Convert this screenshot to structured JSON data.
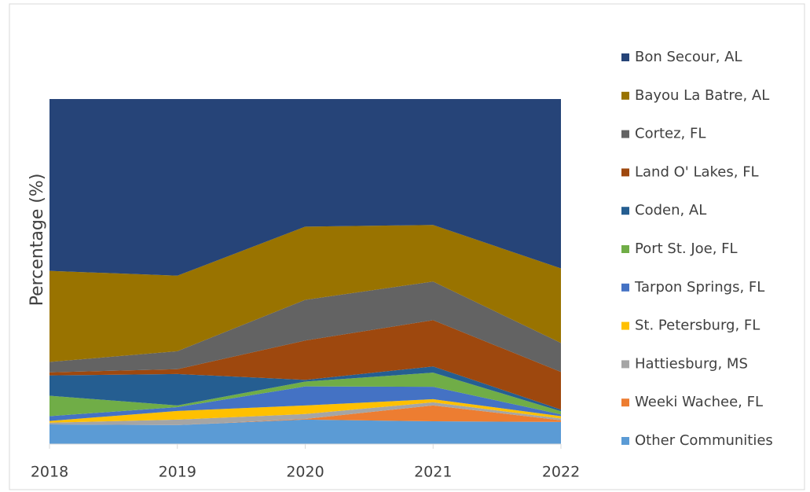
{
  "chart_data": {
    "type": "stacked_area",
    "y_label": "Percentage (%)",
    "categories": [
      "2018",
      "2019",
      "2020",
      "2021",
      "2022"
    ],
    "ylim": [
      0,
      100
    ],
    "series": [
      {
        "name": "Other Communities",
        "color": "#5b9bd5",
        "values": [
          5.7,
          5.5,
          7.1,
          6.6,
          6.4
        ]
      },
      {
        "name": "Weeki Wachee, FL",
        "color": "#ed7d31",
        "values": [
          0,
          0,
          0.2,
          4.6,
          0.5
        ]
      },
      {
        "name": "Hattiesburg, MS",
        "color": "#a5a5a5",
        "values": [
          0.5,
          1.6,
          1.4,
          0.9,
          0.5
        ]
      },
      {
        "name": "St. Petersburg, FL",
        "color": "#ffc000",
        "values": [
          0.5,
          2.5,
          2.5,
          0.9,
          0.7
        ]
      },
      {
        "name": "Tarpon Springs, FL",
        "color": "#4472c4",
        "values": [
          1.4,
          1.1,
          5.5,
          3.6,
          0.5
        ]
      },
      {
        "name": "Port St. Joe, FL",
        "color": "#70ad47",
        "values": [
          5.9,
          0.5,
          1.4,
          4.1,
          0.9
        ]
      },
      {
        "name": "Coden, AL",
        "color": "#255e91",
        "values": [
          5.9,
          9.1,
          0.5,
          1.8,
          0.5
        ]
      },
      {
        "name": "Land O' Lakes, FL",
        "color": "#9e480e",
        "values": [
          0.9,
          1.4,
          11.4,
          13.4,
          10.9
        ]
      },
      {
        "name": "Cortez, FL",
        "color": "#636363",
        "values": [
          3.0,
          5.2,
          11.8,
          11.2,
          8.4
        ]
      },
      {
        "name": "Bayou La Batre, AL",
        "color": "#997300",
        "values": [
          26.4,
          21.9,
          21.2,
          16.4,
          21.6
        ]
      },
      {
        "name": "Bon Secour, AL",
        "color": "#264478",
        "values": [
          49.8,
          51.2,
          37.0,
          36.5,
          49.1
        ]
      }
    ]
  }
}
